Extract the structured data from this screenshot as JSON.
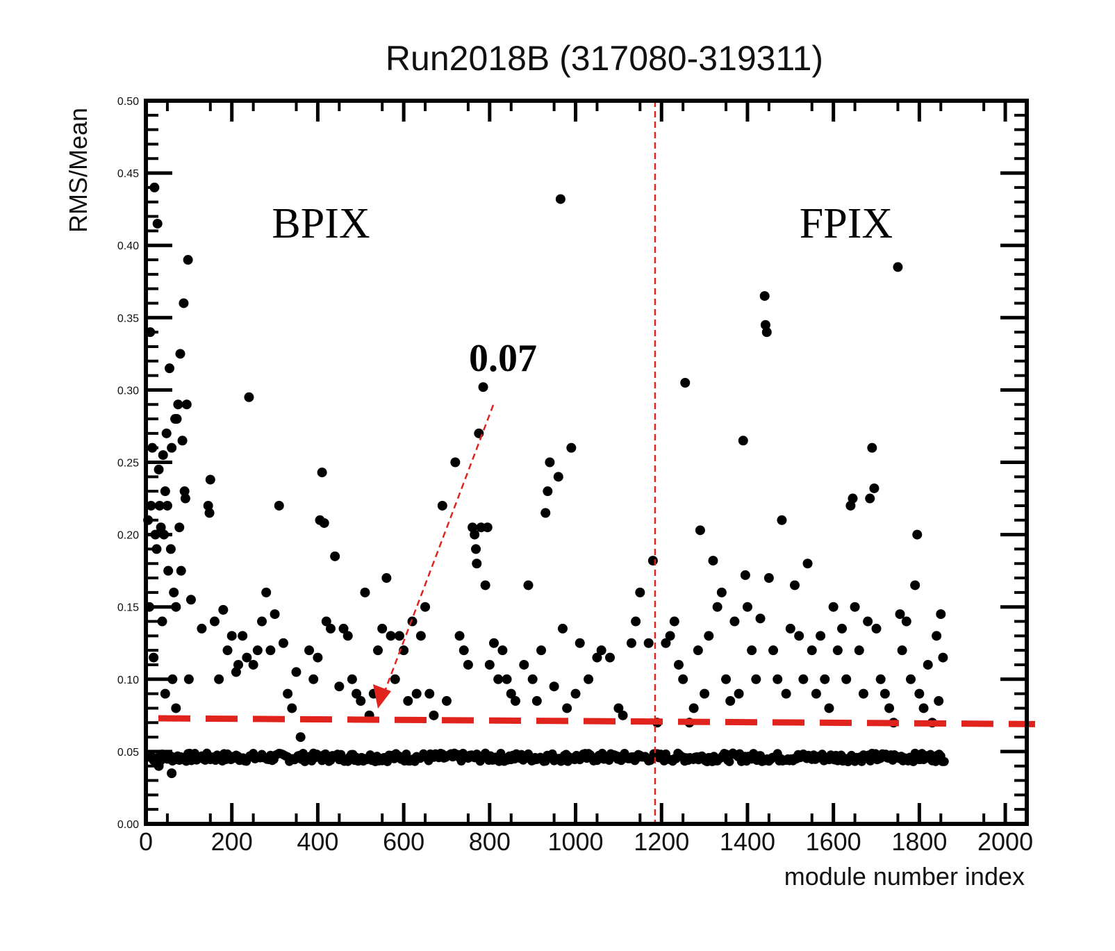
{
  "chart_data": {
    "type": "scatter",
    "title": "Run2018B (317080-319311)",
    "xlabel": "module number index",
    "ylabel": "RMS/Mean",
    "xlim": [
      0,
      2050
    ],
    "ylim": [
      0,
      0.5
    ],
    "xticks": [
      "0",
      "200",
      "400",
      "600",
      "800",
      "1000",
      "1200",
      "1400",
      "1600",
      "1800",
      "2000"
    ],
    "yticks": [
      "0.00",
      "0.05",
      "0.10",
      "0.15",
      "0.20",
      "0.25",
      "0.30",
      "0.35",
      "0.40",
      "0.45",
      "0.50"
    ],
    "grid": false,
    "series": [
      {
        "marker_color": "#000000",
        "baseline": 0.046,
        "x_range": [
          10,
          1860
        ],
        "points": [
          [
            5,
            0.21
          ],
          [
            8,
            0.15
          ],
          [
            10,
            0.34
          ],
          [
            12,
            0.22
          ],
          [
            15,
            0.26
          ],
          [
            18,
            0.115
          ],
          [
            20,
            0.44
          ],
          [
            22,
            0.2
          ],
          [
            25,
            0.19
          ],
          [
            27,
            0.415
          ],
          [
            30,
            0.245
          ],
          [
            32,
            0.22
          ],
          [
            35,
            0.205
          ],
          [
            38,
            0.14
          ],
          [
            40,
            0.255
          ],
          [
            42,
            0.2
          ],
          [
            45,
            0.23
          ],
          [
            48,
            0.27
          ],
          [
            50,
            0.22
          ],
          [
            52,
            0.175
          ],
          [
            55,
            0.315
          ],
          [
            58,
            0.19
          ],
          [
            60,
            0.26
          ],
          [
            62,
            0.1
          ],
          [
            65,
            0.16
          ],
          [
            68,
            0.28
          ],
          [
            70,
            0.15
          ],
          [
            72,
            0.28
          ],
          [
            75,
            0.29
          ],
          [
            78,
            0.205
          ],
          [
            80,
            0.325
          ],
          [
            82,
            0.175
          ],
          [
            85,
            0.265
          ],
          [
            88,
            0.36
          ],
          [
            90,
            0.23
          ],
          [
            92,
            0.225
          ],
          [
            95,
            0.29
          ],
          [
            98,
            0.39
          ],
          [
            100,
            0.1
          ],
          [
            105,
            0.155
          ],
          [
            30,
            0.04
          ],
          [
            60,
            0.035
          ],
          [
            45,
            0.09
          ],
          [
            70,
            0.08
          ],
          [
            130,
            0.135
          ],
          [
            145,
            0.22
          ],
          [
            148,
            0.215
          ],
          [
            150,
            0.238
          ],
          [
            160,
            0.14
          ],
          [
            170,
            0.1
          ],
          [
            180,
            0.148
          ],
          [
            190,
            0.12
          ],
          [
            200,
            0.13
          ],
          [
            210,
            0.105
          ],
          [
            215,
            0.11
          ],
          [
            225,
            0.13
          ],
          [
            235,
            0.115
          ],
          [
            240,
            0.295
          ],
          [
            250,
            0.11
          ],
          [
            260,
            0.12
          ],
          [
            270,
            0.14
          ],
          [
            280,
            0.16
          ],
          [
            290,
            0.12
          ],
          [
            300,
            0.145
          ],
          [
            310,
            0.22
          ],
          [
            320,
            0.125
          ],
          [
            330,
            0.09
          ],
          [
            340,
            0.08
          ],
          [
            350,
            0.105
          ],
          [
            360,
            0.06
          ],
          [
            380,
            0.12
          ],
          [
            390,
            0.1
          ],
          [
            400,
            0.115
          ],
          [
            405,
            0.21
          ],
          [
            410,
            0.243
          ],
          [
            415,
            0.208
          ],
          [
            420,
            0.14
          ],
          [
            430,
            0.135
          ],
          [
            440,
            0.185
          ],
          [
            450,
            0.095
          ],
          [
            460,
            0.135
          ],
          [
            470,
            0.13
          ],
          [
            480,
            0.1
          ],
          [
            490,
            0.09
          ],
          [
            500,
            0.085
          ],
          [
            510,
            0.16
          ],
          [
            520,
            0.075
          ],
          [
            530,
            0.09
          ],
          [
            540,
            0.12
          ],
          [
            550,
            0.135
          ],
          [
            560,
            0.17
          ],
          [
            570,
            0.13
          ],
          [
            580,
            0.1
          ],
          [
            590,
            0.13
          ],
          [
            600,
            0.12
          ],
          [
            610,
            0.085
          ],
          [
            620,
            0.14
          ],
          [
            630,
            0.09
          ],
          [
            640,
            0.13
          ],
          [
            650,
            0.15
          ],
          [
            660,
            0.09
          ],
          [
            670,
            0.075
          ],
          [
            690,
            0.22
          ],
          [
            700,
            0.085
          ],
          [
            720,
            0.25
          ],
          [
            730,
            0.13
          ],
          [
            740,
            0.12
          ],
          [
            750,
            0.11
          ],
          [
            760,
            0.205
          ],
          [
            765,
            0.2
          ],
          [
            768,
            0.19
          ],
          [
            770,
            0.18
          ],
          [
            775,
            0.27
          ],
          [
            780,
            0.205
          ],
          [
            785,
            0.302
          ],
          [
            790,
            0.165
          ],
          [
            795,
            0.205
          ],
          [
            800,
            0.11
          ],
          [
            810,
            0.125
          ],
          [
            820,
            0.1
          ],
          [
            830,
            0.12
          ],
          [
            840,
            0.1
          ],
          [
            850,
            0.09
          ],
          [
            860,
            0.085
          ],
          [
            880,
            0.11
          ],
          [
            890,
            0.165
          ],
          [
            900,
            0.1
          ],
          [
            910,
            0.085
          ],
          [
            920,
            0.12
          ],
          [
            930,
            0.215
          ],
          [
            935,
            0.23
          ],
          [
            940,
            0.25
          ],
          [
            950,
            0.095
          ],
          [
            960,
            0.24
          ],
          [
            965,
            0.432
          ],
          [
            970,
            0.135
          ],
          [
            980,
            0.08
          ],
          [
            990,
            0.26
          ],
          [
            1000,
            0.09
          ],
          [
            1010,
            0.125
          ],
          [
            1030,
            0.1
          ],
          [
            1050,
            0.115
          ],
          [
            1060,
            0.12
          ],
          [
            1080,
            0.115
          ],
          [
            1100,
            0.08
          ],
          [
            1110,
            0.075
          ],
          [
            1130,
            0.125
          ],
          [
            1140,
            0.14
          ],
          [
            1150,
            0.16
          ],
          [
            1170,
            0.125
          ],
          [
            1180,
            0.182
          ],
          [
            1190,
            0.07
          ],
          [
            1210,
            0.125
          ],
          [
            1220,
            0.13
          ],
          [
            1230,
            0.14
          ],
          [
            1240,
            0.11
          ],
          [
            1250,
            0.1
          ],
          [
            1255,
            0.305
          ],
          [
            1265,
            0.07
          ],
          [
            1275,
            0.08
          ],
          [
            1285,
            0.12
          ],
          [
            1290,
            0.203
          ],
          [
            1300,
            0.09
          ],
          [
            1310,
            0.13
          ],
          [
            1320,
            0.182
          ],
          [
            1330,
            0.15
          ],
          [
            1340,
            0.16
          ],
          [
            1350,
            0.1
          ],
          [
            1360,
            0.085
          ],
          [
            1370,
            0.14
          ],
          [
            1380,
            0.09
          ],
          [
            1390,
            0.265
          ],
          [
            1395,
            0.172
          ],
          [
            1400,
            0.15
          ],
          [
            1410,
            0.12
          ],
          [
            1420,
            0.1
          ],
          [
            1430,
            0.142
          ],
          [
            1440,
            0.365
          ],
          [
            1442,
            0.345
          ],
          [
            1445,
            0.34
          ],
          [
            1450,
            0.17
          ],
          [
            1460,
            0.12
          ],
          [
            1470,
            0.1
          ],
          [
            1480,
            0.21
          ],
          [
            1490,
            0.09
          ],
          [
            1500,
            0.135
          ],
          [
            1510,
            0.165
          ],
          [
            1520,
            0.13
          ],
          [
            1530,
            0.1
          ],
          [
            1540,
            0.18
          ],
          [
            1550,
            0.12
          ],
          [
            1560,
            0.09
          ],
          [
            1570,
            0.13
          ],
          [
            1580,
            0.1
          ],
          [
            1590,
            0.08
          ],
          [
            1600,
            0.15
          ],
          [
            1610,
            0.12
          ],
          [
            1620,
            0.135
          ],
          [
            1630,
            0.1
          ],
          [
            1640,
            0.22
          ],
          [
            1645,
            0.225
          ],
          [
            1650,
            0.15
          ],
          [
            1660,
            0.12
          ],
          [
            1670,
            0.09
          ],
          [
            1680,
            0.14
          ],
          [
            1685,
            0.225
          ],
          [
            1690,
            0.26
          ],
          [
            1695,
            0.232
          ],
          [
            1700,
            0.135
          ],
          [
            1710,
            0.1
          ],
          [
            1720,
            0.09
          ],
          [
            1730,
            0.08
          ],
          [
            1740,
            0.07
          ],
          [
            1750,
            0.385
          ],
          [
            1755,
            0.145
          ],
          [
            1760,
            0.12
          ],
          [
            1770,
            0.14
          ],
          [
            1780,
            0.1
          ],
          [
            1790,
            0.165
          ],
          [
            1795,
            0.2
          ],
          [
            1800,
            0.09
          ],
          [
            1810,
            0.08
          ],
          [
            1820,
            0.11
          ],
          [
            1830,
            0.07
          ],
          [
            1840,
            0.13
          ],
          [
            1845,
            0.085
          ],
          [
            1850,
            0.145
          ],
          [
            1855,
            0.115
          ]
        ]
      }
    ],
    "annotations": {
      "region_left": "BPIX",
      "region_right": "FPIX",
      "value_label": "0.07",
      "threshold_y": 0.07,
      "divider_x": 1185,
      "line_color": "#e0231c"
    }
  }
}
